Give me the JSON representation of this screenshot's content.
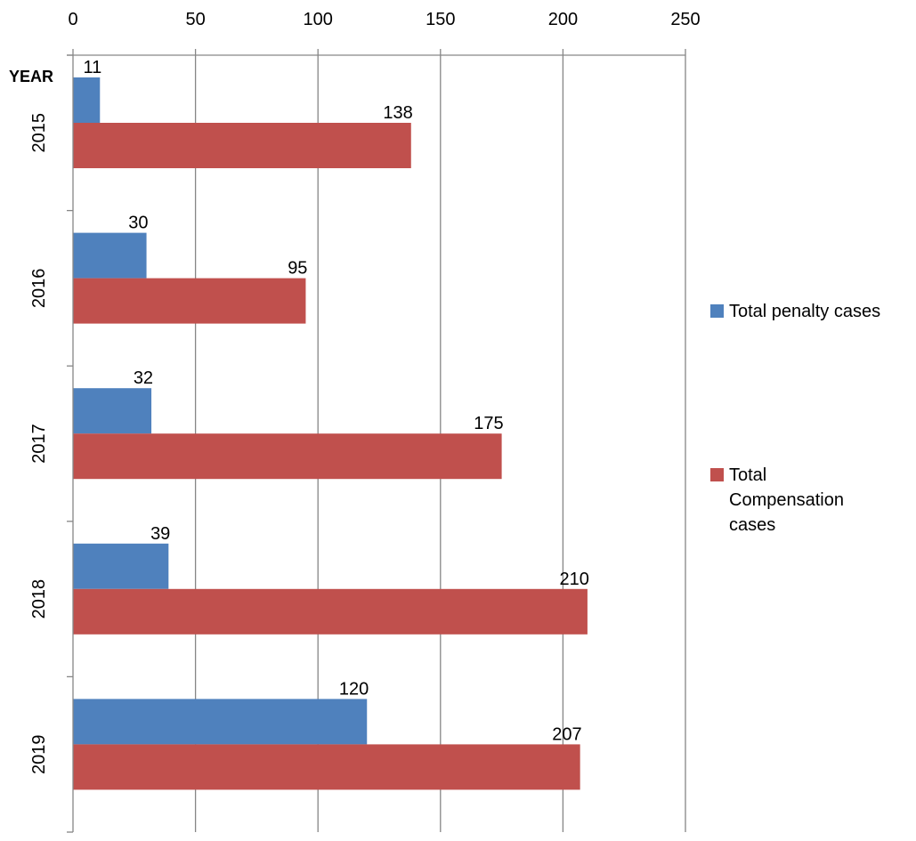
{
  "chart_data": {
    "type": "bar",
    "orientation": "horizontal",
    "ylabel": "YEAR",
    "categories": [
      "2015",
      "2016",
      "2017",
      "2018",
      "2019"
    ],
    "xlim": [
      0,
      250
    ],
    "xticks": [
      0,
      50,
      100,
      150,
      200,
      250
    ],
    "grid": true,
    "legend_position": "right",
    "series": [
      {
        "name": "Total penalty cases",
        "color": "#4F81BD",
        "values": [
          11,
          30,
          32,
          39,
          120
        ]
      },
      {
        "name": "Total Compensation cases",
        "color": "#C0504D",
        "values": [
          138,
          95,
          175,
          210,
          207
        ]
      }
    ]
  }
}
